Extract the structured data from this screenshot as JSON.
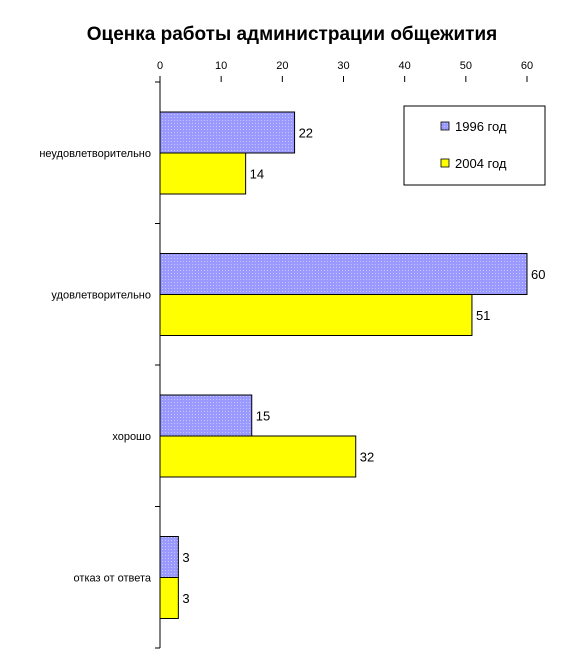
{
  "chart_data": {
    "type": "bar",
    "orientation": "horizontal",
    "title": "Оценка работы администрации общежития",
    "categories": [
      "неудовлетворительно",
      "удовлетворительно",
      "хорошо",
      "отказ от ответа"
    ],
    "series": [
      {
        "name": "1996 год",
        "values": [
          22,
          60,
          15,
          3
        ],
        "color": "#9999ff"
      },
      {
        "name": "2004 год",
        "values": [
          14,
          51,
          32,
          3
        ],
        "color": "#ffff00"
      }
    ],
    "xlim": [
      0,
      60
    ],
    "xticks": [
      0,
      10,
      20,
      30,
      40,
      50,
      60
    ],
    "xaxis_position": "top",
    "grid": false,
    "data_labels": true,
    "legend_position": "top-right"
  }
}
